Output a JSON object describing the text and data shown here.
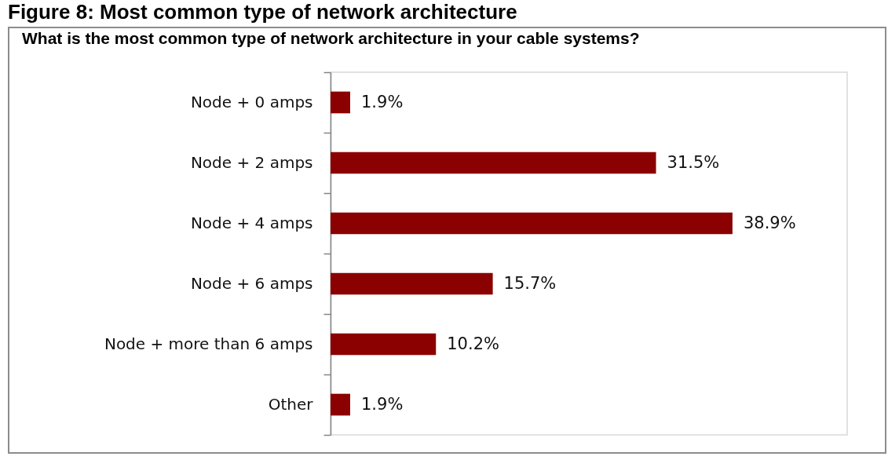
{
  "chart_data": {
    "type": "bar",
    "orientation": "horizontal",
    "title": "Figure 8: Most common type of network architecture",
    "subtitle": "What is the most common type of network architecture in your cable systems?",
    "categories": [
      "Node + 0 amps",
      "Node + 2 amps",
      "Node + 4 amps",
      "Node + 6 amps",
      "Node + more than 6 amps",
      "Other"
    ],
    "values": [
      1.9,
      31.5,
      38.9,
      15.7,
      10.2,
      1.9
    ],
    "value_labels": [
      "1.9%",
      "31.5%",
      "38.9%",
      "15.7%",
      "10.2%",
      "1.9%"
    ],
    "color": "#8b0000",
    "xlim": [
      0,
      50
    ],
    "tick_labels": "y"
  }
}
